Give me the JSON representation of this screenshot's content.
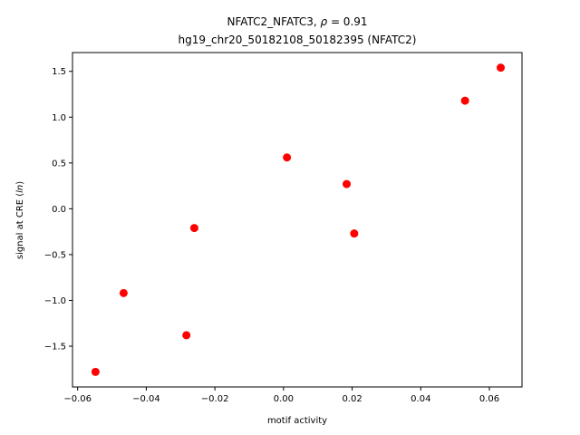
{
  "chart_data": {
    "type": "scatter",
    "title_line1_prefix": "NFATC2_NFATC3, ",
    "title_line1_rho": "ρ",
    "title_line1_suffix": " = 0.91",
    "title_line2": "hg19_chr20_50182108_50182395 (NFATC2)",
    "xlabel": "motif activity",
    "ylabel_prefix": "signal at CRE (",
    "ylabel_italic": "ln",
    "ylabel_suffix": ")",
    "xlim": [
      -0.0615,
      0.0695
    ],
    "ylim": [
      -1.945,
      1.705
    ],
    "xticks": [
      -0.06,
      -0.04,
      -0.02,
      0.0,
      0.02,
      0.04,
      0.06
    ],
    "xtick_labels": [
      "−0.06",
      "−0.04",
      "−0.02",
      "0.00",
      "0.02",
      "0.04",
      "0.06"
    ],
    "yticks": [
      -1.5,
      -1.0,
      -0.5,
      0.0,
      0.5,
      1.0,
      1.5
    ],
    "ytick_labels": [
      "−1.5",
      "−1.0",
      "−0.5",
      "0.0",
      "0.5",
      "1.0",
      "1.5"
    ],
    "grid": false,
    "marker_color": "#ff0000",
    "points": [
      {
        "x": -0.0548,
        "y": -1.78
      },
      {
        "x": -0.0466,
        "y": -0.92
      },
      {
        "x": -0.0283,
        "y": -1.38
      },
      {
        "x": -0.026,
        "y": -0.21
      },
      {
        "x": 0.001,
        "y": 0.56
      },
      {
        "x": 0.0184,
        "y": 0.27
      },
      {
        "x": 0.0206,
        "y": -0.27
      },
      {
        "x": 0.0529,
        "y": 1.18
      },
      {
        "x": 0.0633,
        "y": 1.54
      }
    ]
  }
}
